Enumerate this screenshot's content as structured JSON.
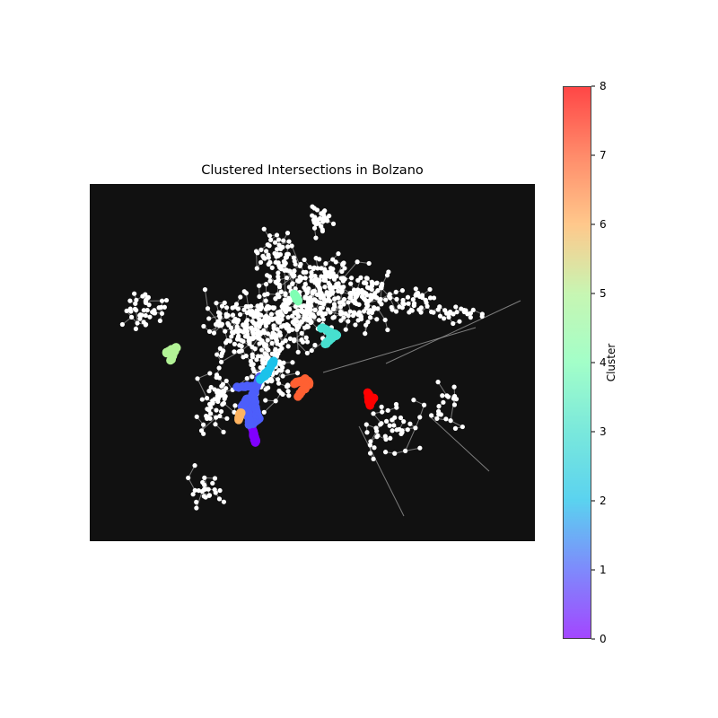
{
  "chart_data": {
    "type": "scatter",
    "title": "Clustered Intersections in Bolzano",
    "background": "#111111",
    "node_color": "#ffffff",
    "edge_color": "#aaaaaa",
    "colorbar": {
      "label": "Cluster",
      "colormap": "rainbow",
      "range": [
        0,
        8
      ],
      "ticks": [
        0,
        1,
        2,
        3,
        4,
        5,
        6,
        7,
        8
      ],
      "tick_labels": [
        "0",
        "1",
        "2",
        "3",
        "4",
        "5",
        "6",
        "7",
        "8"
      ]
    },
    "clusters": [
      {
        "id": 0,
        "color": "#8000ff"
      },
      {
        "id": 1,
        "color": "#4d5efb"
      },
      {
        "id": 2,
        "color": "#1cc2ea"
      },
      {
        "id": 3,
        "color": "#47e0cf"
      },
      {
        "id": 4,
        "color": "#80ffb4"
      },
      {
        "id": 5,
        "color": "#b2f396"
      },
      {
        "id": 6,
        "color": "#ffb460"
      },
      {
        "id": 7,
        "color": "#ff6032"
      },
      {
        "id": 8,
        "color": "#ff0000"
      }
    ]
  }
}
